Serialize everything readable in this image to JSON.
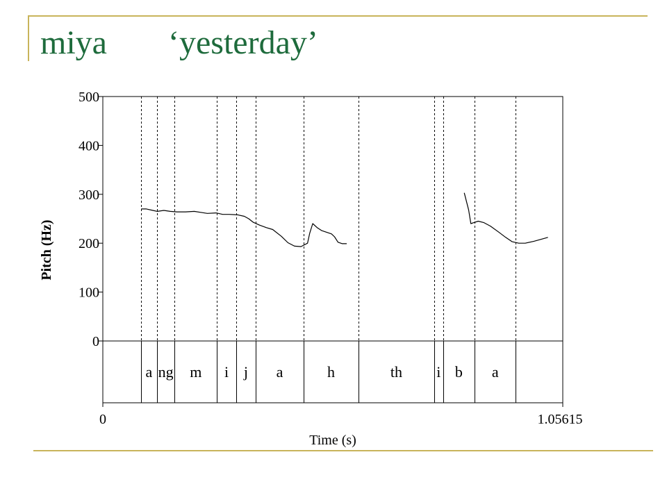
{
  "slide": {
    "title_word": "miya",
    "title_gloss": "‘yesterday’",
    "accent_color": "#c8b45a",
    "title_color": "#1e6b3c"
  },
  "chart_data": {
    "type": "line",
    "ylabel": "Pitch (Hz)",
    "xlabel": "Time (s)",
    "xlim": [
      0,
      1.05615
    ],
    "ylim": [
      0,
      500
    ],
    "x_tick_labels": [
      "0",
      "1.05615"
    ],
    "y_tick_values": [
      0,
      100,
      200,
      300,
      400,
      500
    ],
    "y_tick_labels": [
      "0",
      "100",
      "200",
      "300",
      "400",
      "500"
    ],
    "grid": false,
    "series": [
      {
        "values": [
          [
            [
              0.088,
              270
            ],
            [
              0.1,
              270
            ],
            [
              0.115,
              267
            ],
            [
              0.125,
              265
            ],
            [
              0.14,
              267
            ],
            [
              0.155,
              265
            ],
            [
              0.17,
              264
            ],
            [
              0.19,
              264
            ],
            [
              0.21,
              265
            ],
            [
              0.225,
              263
            ],
            [
              0.24,
              261
            ],
            [
              0.26,
              262
            ],
            [
              0.275,
              259
            ],
            [
              0.29,
              259
            ],
            [
              0.31,
              258
            ],
            [
              0.325,
              255
            ],
            [
              0.335,
              250
            ],
            [
              0.345,
              243
            ],
            [
              0.36,
              237
            ],
            [
              0.375,
              232
            ],
            [
              0.39,
              228
            ],
            [
              0.41,
              214
            ],
            [
              0.425,
              201
            ],
            [
              0.44,
              194
            ],
            [
              0.455,
              193
            ],
            [
              0.47,
              200
            ],
            [
              0.475,
              220
            ],
            [
              0.482,
              240
            ],
            [
              0.492,
              232
            ],
            [
              0.502,
              226
            ],
            [
              0.515,
              222
            ],
            [
              0.525,
              219
            ],
            [
              0.532,
              213
            ],
            [
              0.54,
              202
            ],
            [
              0.55,
              199
            ],
            [
              0.56,
              199
            ]
          ],
          [
            [
              0.83,
              303
            ],
            [
              0.84,
              268
            ],
            [
              0.845,
              240
            ],
            [
              0.852,
              242
            ],
            [
              0.862,
              245
            ],
            [
              0.875,
              242
            ],
            [
              0.89,
              235
            ],
            [
              0.91,
              222
            ],
            [
              0.925,
              212
            ],
            [
              0.94,
              203
            ],
            [
              0.955,
              200
            ],
            [
              0.97,
              200
            ],
            [
              0.99,
              204
            ],
            [
              1.01,
              209
            ],
            [
              1.022,
              212
            ]
          ]
        ]
      }
    ],
    "segment_boundaries": [
      0.088,
      0.124,
      0.165,
      0.262,
      0.306,
      0.351,
      0.461,
      0.587,
      0.761,
      0.781,
      0.854,
      0.948
    ],
    "segments": [
      {
        "label": "a",
        "start": 0.088,
        "end": 0.124
      },
      {
        "label": "ng",
        "start": 0.124,
        "end": 0.165
      },
      {
        "label": "m",
        "start": 0.165,
        "end": 0.262
      },
      {
        "label": "i",
        "start": 0.262,
        "end": 0.306
      },
      {
        "label": "j",
        "start": 0.306,
        "end": 0.351
      },
      {
        "label": "a",
        "start": 0.351,
        "end": 0.461
      },
      {
        "label": "h",
        "start": 0.461,
        "end": 0.587
      },
      {
        "label": "th",
        "start": 0.587,
        "end": 0.761
      },
      {
        "label": "i",
        "start": 0.761,
        "end": 0.781
      },
      {
        "label": "b",
        "start": 0.781,
        "end": 0.854
      },
      {
        "label": "a",
        "start": 0.854,
        "end": 0.948
      }
    ]
  }
}
